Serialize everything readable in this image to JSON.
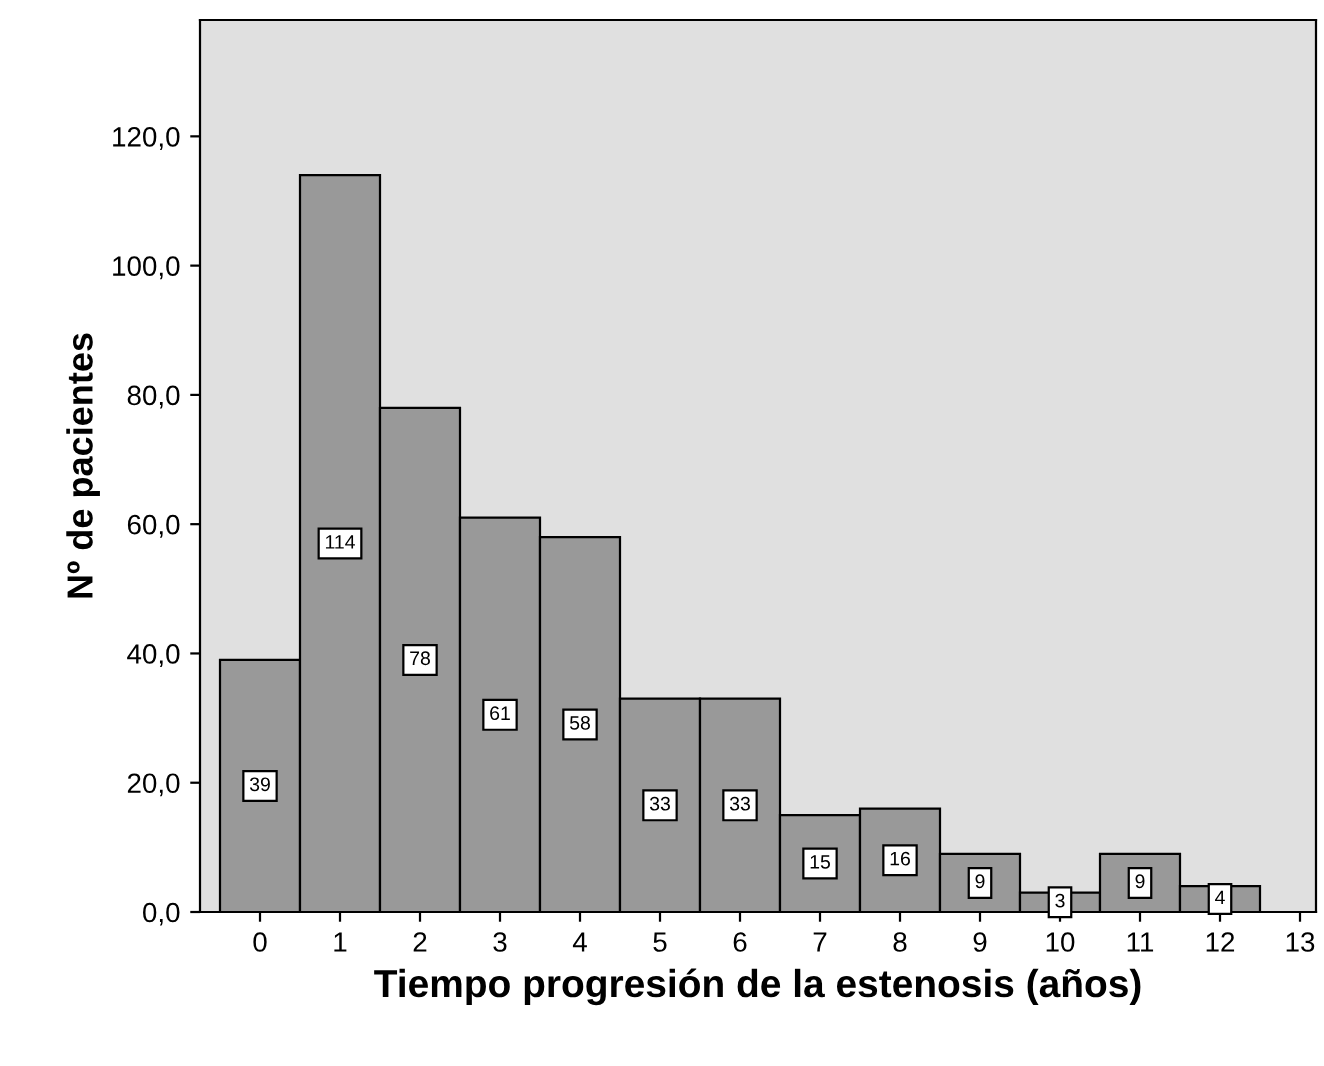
{
  "chart_data": {
    "type": "histogram",
    "xlabel": "Tiempo progresión de la estenosis (años)",
    "ylabel": "Nº de pacientes",
    "bins": [
      -0.5,
      0.5,
      1.5,
      2.5,
      3.5,
      4.5,
      5.5,
      6.5,
      7.5,
      8.5,
      9.5,
      10.5,
      11.5,
      12.5
    ],
    "values": [
      39,
      114,
      78,
      61,
      58,
      33,
      33,
      15,
      16,
      9,
      3,
      9,
      4
    ],
    "color": "#999999",
    "data_labels": true,
    "grid": false,
    "xlim": [
      -0.75,
      13.2
    ],
    "xticks": [
      0,
      1,
      2,
      3,
      4,
      5,
      6,
      7,
      8,
      9,
      10,
      11,
      12,
      13
    ],
    "ylim": [
      0,
      138
    ],
    "yticks": [
      {
        "value": 0,
        "label": "0,0"
      },
      {
        "value": 20,
        "label": "20,0"
      },
      {
        "value": 40,
        "label": "40,0"
      },
      {
        "value": 60,
        "label": "60,0"
      },
      {
        "value": 80,
        "label": "80,0"
      },
      {
        "value": 100,
        "label": "100,0"
      },
      {
        "value": 120,
        "label": "120,0"
      }
    ]
  }
}
